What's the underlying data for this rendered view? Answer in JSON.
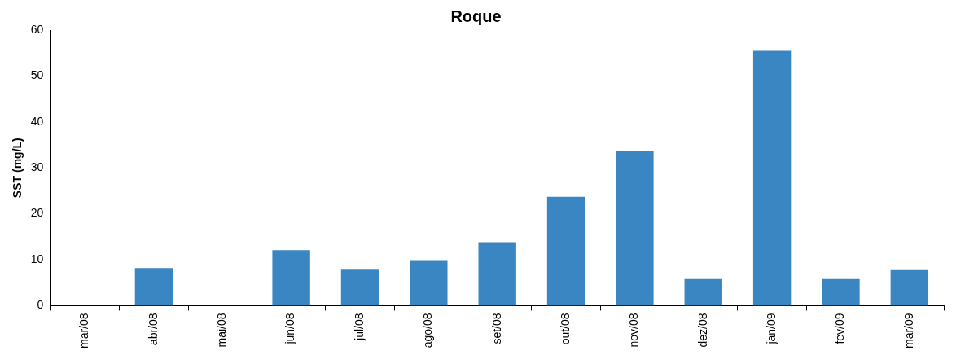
{
  "chart_data": {
    "type": "bar",
    "title": "Roque",
    "ylabel": "SST (mg/L)",
    "categories": [
      "mar/08",
      "abr/08",
      "mai/08",
      "jun/08",
      "jul/08",
      "ago/08",
      "set/08",
      "out/08",
      "nov/08",
      "dez/08",
      "jan/09",
      "fev/09",
      "mar/09"
    ],
    "values": [
      null,
      8.2,
      null,
      12.1,
      8.0,
      9.9,
      13.8,
      23.7,
      33.6,
      5.8,
      55.5,
      5.8,
      7.9
    ],
    "color": "#3a86c3",
    "ylim": [
      0,
      60
    ],
    "yticks": [
      0,
      10,
      20,
      30,
      40,
      50,
      60
    ],
    "grid": false,
    "legend": false
  }
}
